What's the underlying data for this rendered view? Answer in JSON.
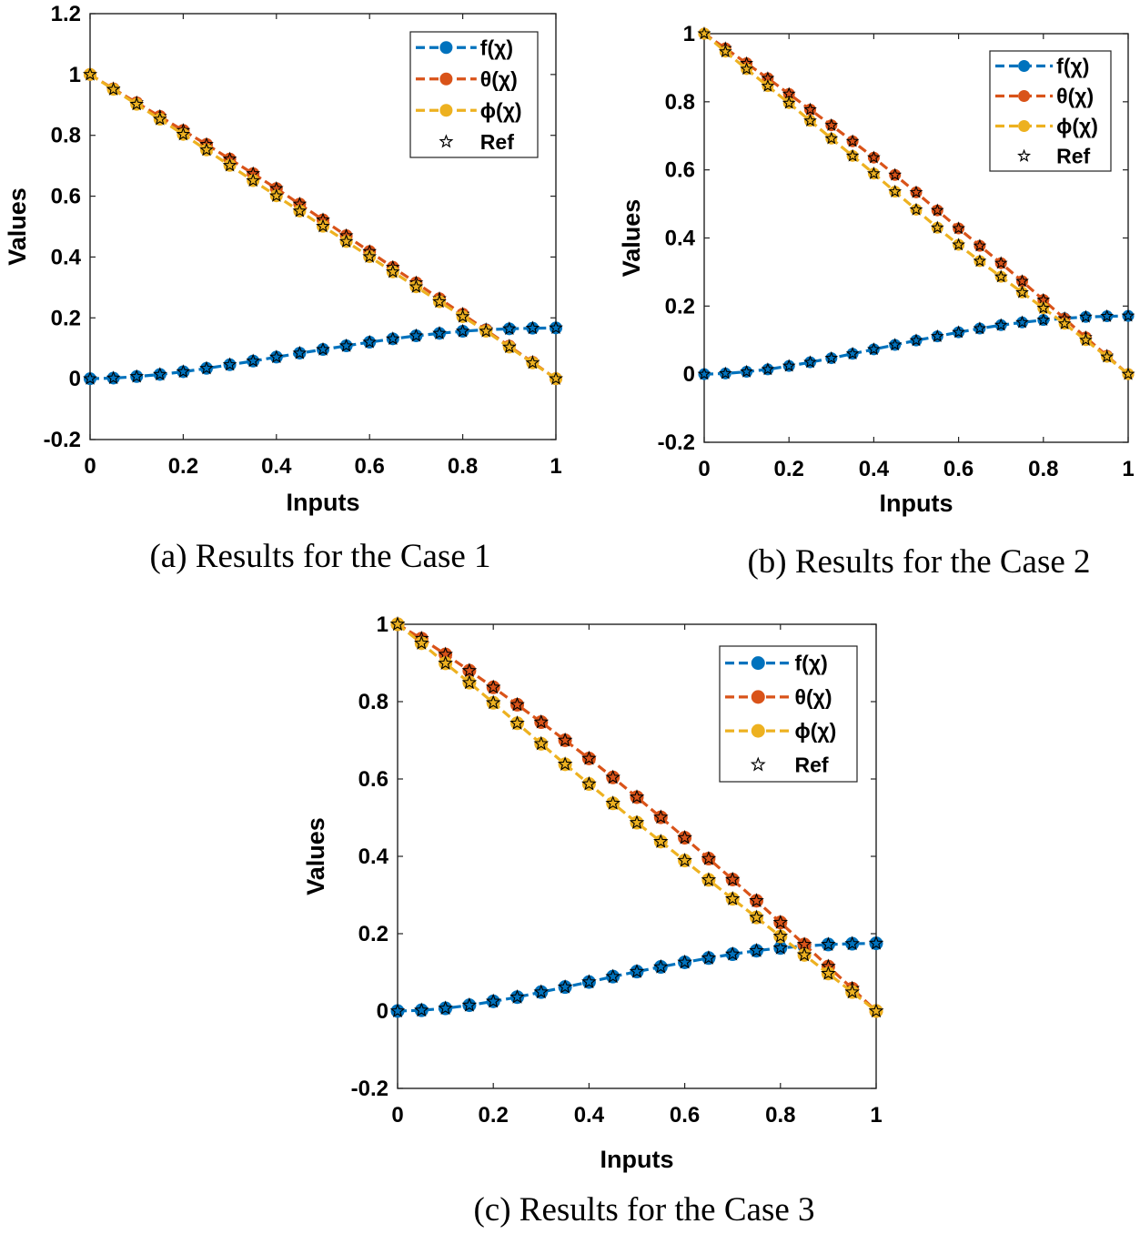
{
  "colors": {
    "f": "#0072BD",
    "theta": "#D95319",
    "phi": "#EDB120",
    "ref": "#000000"
  },
  "chart_data": [
    {
      "type": "line",
      "caption": "(a) Results for the Case 1",
      "xlabel": "Inputs",
      "ylabel": "Values",
      "xlim": [
        0,
        1
      ],
      "ylim": [
        -0.2,
        1.2
      ],
      "xticks": [
        0,
        0.2,
        0.4,
        0.6,
        0.8,
        1
      ],
      "xtick_labels": [
        "0",
        "0.2",
        "0.4",
        "0.6",
        "0.8",
        "1"
      ],
      "yticks": [
        -0.2,
        0,
        0.2,
        0.4,
        0.6,
        0.8,
        1,
        1.2
      ],
      "ytick_labels": [
        "-0.2",
        "0",
        "0.2",
        "0.4",
        "0.6",
        "0.8",
        "1",
        "1.2"
      ],
      "legend": [
        "f(χ)",
        "θ(χ)",
        "ϕ(χ)",
        "Ref"
      ],
      "legend_position": "top-right",
      "x": [
        0,
        0.05,
        0.1,
        0.15,
        0.2,
        0.25,
        0.3,
        0.35,
        0.4,
        0.45,
        0.5,
        0.55,
        0.6,
        0.65,
        0.7,
        0.75,
        0.8,
        0.85,
        0.9,
        0.95,
        1
      ],
      "series": [
        {
          "name": "f(χ)",
          "values": [
            0,
            0.002,
            0.007,
            0.014,
            0.023,
            0.034,
            0.046,
            0.058,
            0.071,
            0.084,
            0.096,
            0.108,
            0.12,
            0.131,
            0.141,
            0.149,
            0.156,
            0.161,
            0.164,
            0.166,
            0.167
          ]
        },
        {
          "name": "θ(χ)",
          "values": [
            1,
            0.953,
            0.907,
            0.862,
            0.816,
            0.77,
            0.722,
            0.674,
            0.625,
            0.574,
            0.522,
            0.47,
            0.418,
            0.366,
            0.315,
            0.263,
            0.212,
            0.16,
            0.107,
            0.054,
            0
          ]
        },
        {
          "name": "ϕ(χ)",
          "values": [
            1,
            0.951,
            0.902,
            0.853,
            0.803,
            0.752,
            0.701,
            0.651,
            0.601,
            0.551,
            0.501,
            0.451,
            0.401,
            0.351,
            0.302,
            0.253,
            0.204,
            0.156,
            0.104,
            0.052,
            0
          ]
        }
      ]
    },
    {
      "type": "line",
      "caption": "(b) Results for the Case 2",
      "xlabel": "Inputs",
      "ylabel": "Values",
      "xlim": [
        0,
        1
      ],
      "ylim": [
        -0.2,
        1
      ],
      "xticks": [
        0,
        0.2,
        0.4,
        0.6,
        0.8,
        1
      ],
      "xtick_labels": [
        "0",
        "0.2",
        "0.4",
        "0.6",
        "0.8",
        "1"
      ],
      "yticks": [
        -0.2,
        0,
        0.2,
        0.4,
        0.6,
        0.8,
        1
      ],
      "ytick_labels": [
        "-0.2",
        "0",
        "0.2",
        "0.4",
        "0.6",
        "0.8",
        "1"
      ],
      "legend": [
        "f(χ)",
        "θ(χ)",
        "ϕ(χ)",
        "Ref"
      ],
      "legend_position": "top-right",
      "x": [
        0,
        0.05,
        0.1,
        0.15,
        0.2,
        0.25,
        0.3,
        0.35,
        0.4,
        0.45,
        0.5,
        0.55,
        0.6,
        0.65,
        0.7,
        0.75,
        0.8,
        0.85,
        0.9,
        0.95,
        1
      ],
      "series": [
        {
          "name": "f(χ)",
          "values": [
            0,
            0.002,
            0.007,
            0.014,
            0.024,
            0.035,
            0.047,
            0.06,
            0.073,
            0.086,
            0.099,
            0.111,
            0.123,
            0.134,
            0.144,
            0.152,
            0.159,
            0.164,
            0.168,
            0.17,
            0.171
          ]
        },
        {
          "name": "θ(χ)",
          "values": [
            1,
            0.957,
            0.913,
            0.869,
            0.823,
            0.777,
            0.731,
            0.684,
            0.636,
            0.585,
            0.534,
            0.481,
            0.428,
            0.377,
            0.326,
            0.273,
            0.218,
            0.163,
            0.108,
            0.054,
            0
          ]
        },
        {
          "name": "ϕ(χ)",
          "values": [
            1,
            0.947,
            0.896,
            0.846,
            0.796,
            0.744,
            0.692,
            0.641,
            0.589,
            0.536,
            0.483,
            0.43,
            0.38,
            0.332,
            0.286,
            0.24,
            0.194,
            0.148,
            0.1,
            0.051,
            0
          ]
        }
      ]
    },
    {
      "type": "line",
      "caption": "(c) Results for the Case 3",
      "xlabel": "Inputs",
      "ylabel": "Values",
      "xlim": [
        0,
        1
      ],
      "ylim": [
        -0.2,
        1
      ],
      "xticks": [
        0,
        0.2,
        0.4,
        0.6,
        0.8,
        1
      ],
      "xtick_labels": [
        "0",
        "0.2",
        "0.4",
        "0.6",
        "0.8",
        "1"
      ],
      "yticks": [
        -0.2,
        0,
        0.2,
        0.4,
        0.6,
        0.8,
        1
      ],
      "ytick_labels": [
        "-0.2",
        "0",
        "0.2",
        "0.4",
        "0.6",
        "0.8",
        "1"
      ],
      "legend": [
        "f(χ)",
        "θ(χ)",
        "ϕ(χ)",
        "Ref"
      ],
      "legend_position": "top-right",
      "x": [
        0,
        0.05,
        0.1,
        0.15,
        0.2,
        0.25,
        0.3,
        0.35,
        0.4,
        0.45,
        0.5,
        0.55,
        0.6,
        0.65,
        0.7,
        0.75,
        0.8,
        0.85,
        0.9,
        0.95,
        1
      ],
      "series": [
        {
          "name": "f(χ)",
          "values": [
            0,
            0.002,
            0.007,
            0.015,
            0.025,
            0.036,
            0.049,
            0.062,
            0.075,
            0.089,
            0.102,
            0.114,
            0.126,
            0.137,
            0.147,
            0.156,
            0.163,
            0.168,
            0.172,
            0.174,
            0.175
          ]
        },
        {
          "name": "θ(χ)",
          "values": [
            1,
            0.963,
            0.922,
            0.88,
            0.837,
            0.792,
            0.747,
            0.7,
            0.653,
            0.604,
            0.553,
            0.501,
            0.448,
            0.394,
            0.34,
            0.285,
            0.229,
            0.172,
            0.115,
            0.058,
            0
          ]
        },
        {
          "name": "ϕ(χ)",
          "values": [
            1,
            0.951,
            0.899,
            0.849,
            0.797,
            0.744,
            0.691,
            0.638,
            0.587,
            0.537,
            0.487,
            0.438,
            0.389,
            0.339,
            0.29,
            0.242,
            0.193,
            0.145,
            0.097,
            0.049,
            0
          ]
        }
      ]
    }
  ]
}
